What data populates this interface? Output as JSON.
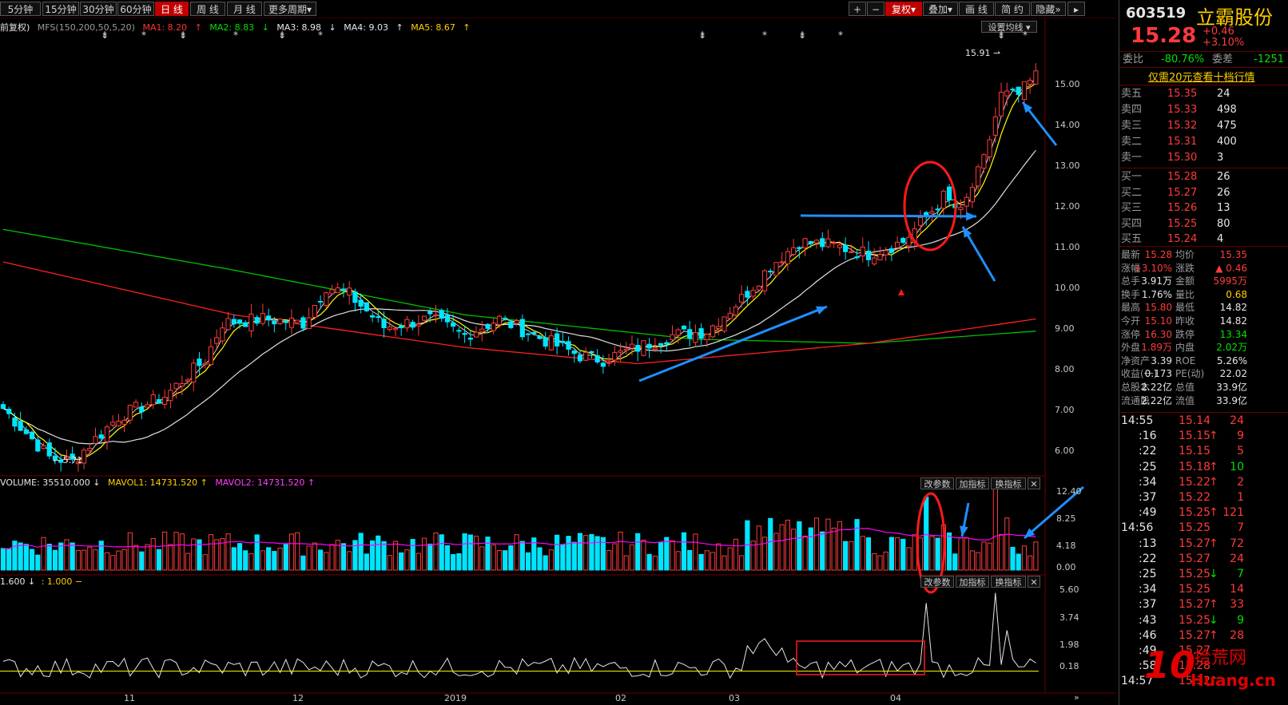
{
  "toolbar": {
    "periods": [
      "5分钟",
      "15分钟",
      "30分钟",
      "60分钟",
      "日 线",
      "周 线",
      "月 线",
      "更多周期"
    ],
    "active_period": "日 线",
    "zoom_in": "+",
    "zoom_out": "−",
    "fuquan": "复权",
    "overlay": "叠加",
    "draw": "画 线",
    "simple": "简 约",
    "hide": "隐藏"
  },
  "ma_legend": {
    "adjust": "前复权)",
    "indicator": "MFS(150,200,50,5,20)",
    "ma1": "MA1: 8.20",
    "ma2": "MA2: 8.83",
    "ma3": "MA3: 8.98",
    "ma4": "MA4: 9.03",
    "ma5": "MA5: 8.67",
    "set_ma": "设置均线"
  },
  "price_labels": {
    "high": "15.91",
    "low": "5.71"
  },
  "y_axis": [
    "15.00",
    "14.00",
    "13.00",
    "12.00",
    "11.00",
    "10.00",
    "9.00",
    "8.00",
    "7.00",
    "6.00"
  ],
  "volume_legend": {
    "volume": "VOLUME: 35510.000",
    "mavol1": "MAVOL1: 14731.520",
    "mavol2": "MAVOL2: 14731.520",
    "y_axis": [
      "12.40",
      "8.25",
      "4.18",
      "0.00"
    ],
    "btn_params": "改参数",
    "btn_add": "加指标",
    "btn_switch": "换指标"
  },
  "indicator_legend": {
    "text1": "1.600",
    "text2": ": 1.000",
    "y_axis": [
      "5.60",
      "3.74",
      "1.98",
      "0.18"
    ],
    "btn_params": "改参数",
    "btn_add": "加指标",
    "btn_switch": "换指标"
  },
  "x_axis": [
    "11",
    "12",
    "2019",
    "02",
    "03",
    "04"
  ],
  "stock": {
    "code": "603519",
    "name": "立霸股份",
    "price": "15.28",
    "change": "+0.46",
    "change_pct": "+3.10%",
    "weibi_label": "委比",
    "weibi": "-80.76%",
    "weicha_label": "委差",
    "weicha": "-1251",
    "promo": "仅需20元查看十档行情"
  },
  "asks": [
    {
      "label": "卖五",
      "price": "15.35",
      "vol": "24"
    },
    {
      "label": "卖四",
      "price": "15.33",
      "vol": "498"
    },
    {
      "label": "卖三",
      "price": "15.32",
      "vol": "475"
    },
    {
      "label": "卖二",
      "price": "15.31",
      "vol": "400"
    },
    {
      "label": "卖一",
      "price": "15.30",
      "vol": "3"
    }
  ],
  "bids": [
    {
      "label": "买一",
      "price": "15.28",
      "vol": "26"
    },
    {
      "label": "买二",
      "price": "15.27",
      "vol": "26"
    },
    {
      "label": "买三",
      "price": "15.26",
      "vol": "13"
    },
    {
      "label": "买四",
      "price": "15.25",
      "vol": "80"
    },
    {
      "label": "买五",
      "price": "15.24",
      "vol": "4"
    }
  ],
  "stats": [
    {
      "l1": "最新",
      "v1": "15.28",
      "l2": "均价",
      "v2": "15.35"
    },
    {
      "l1": "涨幅",
      "v1": "+3.10%",
      "l2": "涨跌",
      "v2": "▲ 0.46"
    },
    {
      "l1": "总手",
      "v1": "3.91万",
      "l2": "金额",
      "v2": "5995万"
    },
    {
      "l1": "换手",
      "v1": "1.76%",
      "l2": "量比",
      "v2": "0.68"
    },
    {
      "l1": "最高",
      "v1": "15.80",
      "l2": "最低",
      "v2": "14.82"
    },
    {
      "l1": "今开",
      "v1": "15.10",
      "l2": "昨收",
      "v2": "14.82"
    },
    {
      "l1": "涨停",
      "v1": "16.30",
      "l2": "跌停",
      "v2": "13.34"
    },
    {
      "l1": "外盘",
      "v1": "1.89万",
      "l2": "内盘",
      "v2": "2.02万"
    },
    {
      "l1": "净资产",
      "v1": "3.39",
      "l2": "ROE",
      "v2": "5.26%"
    },
    {
      "l1": "收益(一)",
      "v1": "0.173",
      "l2": "PE(动)",
      "v2": "22.02"
    },
    {
      "l1": "总股本",
      "v1": "2.22亿",
      "l2": "总值",
      "v2": "33.9亿"
    },
    {
      "l1": "流通股",
      "v1": "2.22亿",
      "l2": "流值",
      "v2": "33.9亿"
    }
  ],
  "ticks": [
    {
      "t": "14:55",
      "p": "15.14",
      "v": "24",
      "dir": "",
      "c": "red"
    },
    {
      "t": ":16",
      "p": "15.15",
      "v": "9",
      "dir": "↑",
      "c": "red"
    },
    {
      "t": ":22",
      "p": "15.15",
      "v": "5",
      "dir": "",
      "c": "red"
    },
    {
      "t": ":25",
      "p": "15.18",
      "v": "10",
      "dir": "↑",
      "c": "green"
    },
    {
      "t": ":34",
      "p": "15.22",
      "v": "2",
      "dir": "↑",
      "c": "red"
    },
    {
      "t": ":37",
      "p": "15.22",
      "v": "1",
      "dir": "",
      "c": "red"
    },
    {
      "t": ":49",
      "p": "15.25",
      "v": "121",
      "dir": "↑",
      "c": "red"
    },
    {
      "t": "14:56",
      "p": "15.25",
      "v": "7",
      "dir": "",
      "c": "red"
    },
    {
      "t": ":13",
      "p": "15.27",
      "v": "72",
      "dir": "↑",
      "c": "red"
    },
    {
      "t": ":22",
      "p": "15.27",
      "v": "24",
      "dir": "",
      "c": "red"
    },
    {
      "t": ":25",
      "p": "15.25",
      "v": "7",
      "dir": "↓",
      "c": "green"
    },
    {
      "t": ":34",
      "p": "15.25",
      "v": "14",
      "dir": "",
      "c": "red"
    },
    {
      "t": ":37",
      "p": "15.27",
      "v": "33",
      "dir": "↑",
      "c": "red"
    },
    {
      "t": ":43",
      "p": "15.25",
      "v": "9",
      "dir": "↓",
      "c": "green"
    },
    {
      "t": ":46",
      "p": "15.27",
      "v": "28",
      "dir": "↑",
      "c": "red"
    },
    {
      "t": ":49",
      "p": "15.27",
      "v": "",
      "dir": "",
      "c": "red"
    },
    {
      "t": ":58",
      "p": "15.28",
      "v": "",
      "dir": "",
      "c": "red"
    },
    {
      "t": "14:57",
      "p": "15.32",
      "v": "",
      "dir": "↑",
      "c": "red"
    }
  ],
  "watermark": "Huang.cn",
  "colors": {
    "up": "#ff3b3b",
    "down": "#00e5ff",
    "ma_yellow": "#ffff00",
    "ma_white": "#e0e0e0",
    "ma_green": "#00c000",
    "ma_red": "#ff2020",
    "mavol_magenta": "#ff00ff",
    "annot_blue": "#1e90ff",
    "annot_red": "#ff1a1a"
  },
  "chart_data": {
    "type": "candlestick",
    "x_range": [
      "2018-10",
      "2019-04"
    ],
    "price_ylim": [
      5.6,
      16.0
    ],
    "volume_ylim": [
      0,
      12.4
    ],
    "indicator_ylim": [
      0,
      6.0
    ]
  }
}
